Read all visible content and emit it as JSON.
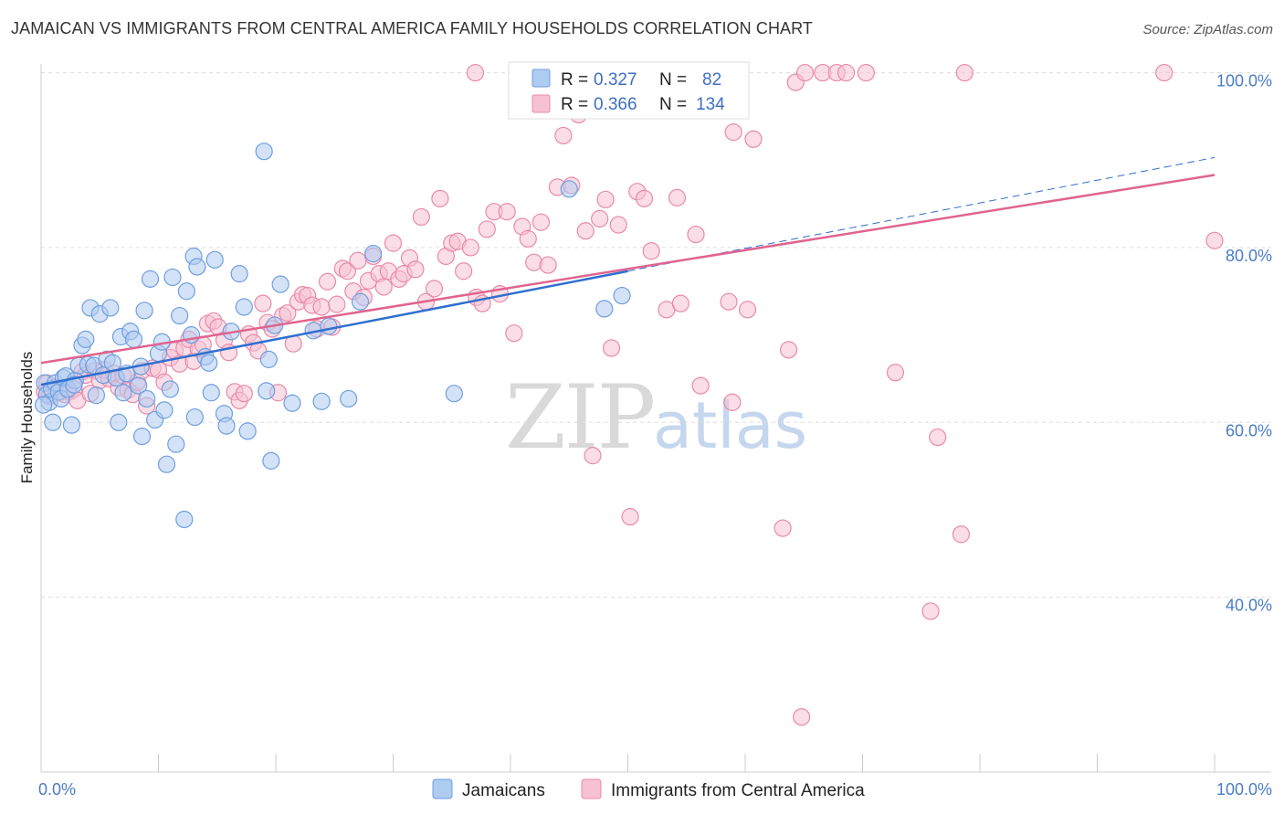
{
  "title": "JAMAICAN VS IMMIGRANTS FROM CENTRAL AMERICA FAMILY HOUSEHOLDS CORRELATION CHART",
  "source": "Source: ZipAtlas.com",
  "watermark": {
    "zip": "ZIP",
    "atlas": "atlas"
  },
  "legend": {
    "r_label": "R =",
    "n_label": "N =",
    "series": [
      {
        "r": "0.327",
        "n": "82"
      },
      {
        "r": "0.366",
        "n": "134"
      }
    ]
  },
  "bottom_legend": [
    "Jamaicans",
    "Immigrants from Central America"
  ],
  "colors": {
    "blue_fill": "#aecbf0",
    "blue_stroke": "#6f9fe0",
    "blue_line": "#2f6fcf",
    "pink_fill": "#f6c1d2",
    "pink_stroke": "#e98aab",
    "pink_line": "#e0648f",
    "grid": "#dddddd",
    "tick_text": "#4a7cc7"
  },
  "chart_data": {
    "type": "scatter",
    "title": "JAMAICAN VS IMMIGRANTS FROM CENTRAL AMERICA FAMILY HOUSEHOLDS CORRELATION CHART",
    "xlabel": "",
    "ylabel": "Family Households",
    "xlim": [
      0,
      100
    ],
    "ylim": [
      20,
      101
    ],
    "x_tick_labels": [
      "0.0%",
      "100.0%"
    ],
    "y_ticks": [
      40,
      60,
      80,
      100
    ],
    "y_tick_labels": [
      "40.0%",
      "60.0%",
      "80.0%",
      "100.0%"
    ],
    "grid": true,
    "legend_position": "top-center",
    "series": [
      {
        "name": "Jamaicans",
        "r": 0.327,
        "n": 82,
        "trend": {
          "x": [
            0,
            50
          ],
          "y": [
            64.3,
            77.3
          ]
        },
        "trend_extension": {
          "x": [
            50,
            100
          ],
          "y": [
            77.3,
            90.3
          ]
        },
        "points": [
          [
            0.3,
            64.5
          ],
          [
            0.5,
            63.2
          ],
          [
            0.7,
            62.3
          ],
          [
            0.9,
            63.8
          ],
          [
            1.0,
            60.0
          ],
          [
            1.2,
            64.5
          ],
          [
            1.5,
            63.5
          ],
          [
            1.7,
            62.7
          ],
          [
            1.9,
            65.1
          ],
          [
            2.1,
            65.3
          ],
          [
            2.3,
            63.8
          ],
          [
            2.6,
            59.7
          ],
          [
            2.9,
            64.8
          ],
          [
            3.2,
            66.5
          ],
          [
            3.5,
            68.8
          ],
          [
            3.8,
            69.5
          ],
          [
            4.0,
            66.6
          ],
          [
            4.2,
            73.1
          ],
          [
            4.5,
            66.5
          ],
          [
            4.7,
            63.1
          ],
          [
            5.0,
            72.4
          ],
          [
            5.3,
            65.4
          ],
          [
            5.6,
            67.2
          ],
          [
            5.9,
            73.1
          ],
          [
            6.1,
            66.8
          ],
          [
            6.4,
            65.1
          ],
          [
            6.6,
            60.0
          ],
          [
            6.8,
            69.8
          ],
          [
            7.0,
            63.4
          ],
          [
            7.3,
            65.6
          ],
          [
            7.6,
            70.4
          ],
          [
            7.9,
            69.5
          ],
          [
            8.3,
            64.2
          ],
          [
            8.5,
            66.4
          ],
          [
            8.6,
            58.4
          ],
          [
            8.8,
            72.8
          ],
          [
            9.0,
            62.7
          ],
          [
            9.3,
            76.4
          ],
          [
            9.7,
            60.3
          ],
          [
            10.0,
            67.9
          ],
          [
            10.3,
            69.2
          ],
          [
            10.5,
            61.4
          ],
          [
            10.7,
            55.2
          ],
          [
            11.0,
            63.8
          ],
          [
            11.2,
            76.6
          ],
          [
            11.5,
            57.5
          ],
          [
            11.8,
            72.2
          ],
          [
            12.2,
            48.9
          ],
          [
            12.4,
            75.0
          ],
          [
            12.8,
            70.0
          ],
          [
            13.0,
            79.0
          ],
          [
            13.1,
            60.6
          ],
          [
            13.3,
            77.8
          ],
          [
            14.0,
            67.5
          ],
          [
            14.3,
            66.8
          ],
          [
            14.5,
            63.4
          ],
          [
            14.8,
            78.6
          ],
          [
            15.6,
            61.0
          ],
          [
            15.8,
            59.6
          ],
          [
            16.2,
            70.4
          ],
          [
            16.9,
            77.0
          ],
          [
            17.3,
            73.2
          ],
          [
            17.6,
            59.0
          ],
          [
            19.0,
            91.0
          ],
          [
            19.2,
            63.6
          ],
          [
            19.4,
            67.2
          ],
          [
            19.6,
            55.6
          ],
          [
            19.9,
            71.1
          ],
          [
            20.4,
            75.8
          ],
          [
            21.4,
            62.2
          ],
          [
            23.2,
            70.5
          ],
          [
            23.9,
            62.4
          ],
          [
            24.5,
            71.0
          ],
          [
            26.2,
            62.7
          ],
          [
            27.2,
            73.8
          ],
          [
            28.3,
            79.3
          ],
          [
            35.2,
            63.3
          ],
          [
            45.0,
            86.7
          ],
          [
            48.0,
            73.0
          ],
          [
            49.5,
            74.5
          ],
          [
            0.2,
            62.0
          ],
          [
            2.8,
            64.3
          ]
        ]
      },
      {
        "name": "Immigrants from Central America",
        "r": 0.366,
        "n": 134,
        "trend": {
          "x": [
            0,
            100
          ],
          "y": [
            66.8,
            88.3
          ]
        },
        "points": [
          [
            0.3,
            63.5
          ],
          [
            0.5,
            64.5
          ],
          [
            0.7,
            63.0
          ],
          [
            1.2,
            64.0
          ],
          [
            1.5,
            63.4
          ],
          [
            2.0,
            63.2
          ],
          [
            2.4,
            63.5
          ],
          [
            2.8,
            63.8
          ],
          [
            3.1,
            62.5
          ],
          [
            3.5,
            65.8
          ],
          [
            3.8,
            65.4
          ],
          [
            4.2,
            63.3
          ],
          [
            4.6,
            65.9
          ],
          [
            5.0,
            64.8
          ],
          [
            5.4,
            66.0
          ],
          [
            5.8,
            65.0
          ],
          [
            6.2,
            65.6
          ],
          [
            6.6,
            64.0
          ],
          [
            7.0,
            65.3
          ],
          [
            7.4,
            63.7
          ],
          [
            7.8,
            63.2
          ],
          [
            8.2,
            64.6
          ],
          [
            8.6,
            65.9
          ],
          [
            9.0,
            61.9
          ],
          [
            9.5,
            66.2
          ],
          [
            10.0,
            66.0
          ],
          [
            10.5,
            64.6
          ],
          [
            11.0,
            67.4
          ],
          [
            11.4,
            68.2
          ],
          [
            11.8,
            66.7
          ],
          [
            12.2,
            68.5
          ],
          [
            12.6,
            69.5
          ],
          [
            13.0,
            67.0
          ],
          [
            13.4,
            68.4
          ],
          [
            13.8,
            68.9
          ],
          [
            14.2,
            71.3
          ],
          [
            14.7,
            71.6
          ],
          [
            15.1,
            70.9
          ],
          [
            15.6,
            69.4
          ],
          [
            16.0,
            68.0
          ],
          [
            16.5,
            63.5
          ],
          [
            16.9,
            62.5
          ],
          [
            17.3,
            63.3
          ],
          [
            17.7,
            70.1
          ],
          [
            18.1,
            69.1
          ],
          [
            18.5,
            68.2
          ],
          [
            18.9,
            73.6
          ],
          [
            19.3,
            71.4
          ],
          [
            19.7,
            70.7
          ],
          [
            20.2,
            63.4
          ],
          [
            20.6,
            72.2
          ],
          [
            21.0,
            72.5
          ],
          [
            21.5,
            69.0
          ],
          [
            21.9,
            73.8
          ],
          [
            22.3,
            74.6
          ],
          [
            22.7,
            74.5
          ],
          [
            23.1,
            73.4
          ],
          [
            23.5,
            70.7
          ],
          [
            23.9,
            73.2
          ],
          [
            24.4,
            76.1
          ],
          [
            24.8,
            70.9
          ],
          [
            25.2,
            73.5
          ],
          [
            25.7,
            77.6
          ],
          [
            26.1,
            77.3
          ],
          [
            26.6,
            75.0
          ],
          [
            27.0,
            78.5
          ],
          [
            27.5,
            74.3
          ],
          [
            27.9,
            76.2
          ],
          [
            28.3,
            79.0
          ],
          [
            28.8,
            77.0
          ],
          [
            29.2,
            75.5
          ],
          [
            29.6,
            77.3
          ],
          [
            30.0,
            80.5
          ],
          [
            30.5,
            76.4
          ],
          [
            30.9,
            77.0
          ],
          [
            31.4,
            78.8
          ],
          [
            31.9,
            77.5
          ],
          [
            32.4,
            83.5
          ],
          [
            32.8,
            73.8
          ],
          [
            33.5,
            75.3
          ],
          [
            34.0,
            85.6
          ],
          [
            34.5,
            79.0
          ],
          [
            35.0,
            80.5
          ],
          [
            35.5,
            80.7
          ],
          [
            36.0,
            77.3
          ],
          [
            36.6,
            80.0
          ],
          [
            37.1,
            74.3
          ],
          [
            37.6,
            73.6
          ],
          [
            38.0,
            82.1
          ],
          [
            38.6,
            84.1
          ],
          [
            39.1,
            74.7
          ],
          [
            39.7,
            84.1
          ],
          [
            40.3,
            70.2
          ],
          [
            41.0,
            82.4
          ],
          [
            41.5,
            81.0
          ],
          [
            42.0,
            78.3
          ],
          [
            42.6,
            82.9
          ],
          [
            43.2,
            78.0
          ],
          [
            44.0,
            86.9
          ],
          [
            44.5,
            92.8
          ],
          [
            45.2,
            87.1
          ],
          [
            45.8,
            95.2
          ],
          [
            46.4,
            81.9
          ],
          [
            47.0,
            56.2
          ],
          [
            47.6,
            83.3
          ],
          [
            48.1,
            85.5
          ],
          [
            48.6,
            68.5
          ],
          [
            49.2,
            82.6
          ],
          [
            50.2,
            49.2
          ],
          [
            50.8,
            86.4
          ],
          [
            51.4,
            85.6
          ],
          [
            52.0,
            79.6
          ],
          [
            53.3,
            72.9
          ],
          [
            54.2,
            85.7
          ],
          [
            54.5,
            73.6
          ],
          [
            55.8,
            81.5
          ],
          [
            56.2,
            64.2
          ],
          [
            57.0,
            100.0
          ],
          [
            58.6,
            73.8
          ],
          [
            58.9,
            62.3
          ],
          [
            59.0,
            93.2
          ],
          [
            60.2,
            72.9
          ],
          [
            60.7,
            92.4
          ],
          [
            63.2,
            47.9
          ],
          [
            63.7,
            68.3
          ],
          [
            64.3,
            98.9
          ],
          [
            64.8,
            26.3
          ],
          [
            65.1,
            100.0
          ],
          [
            66.6,
            100.0
          ],
          [
            67.8,
            100.0
          ],
          [
            68.6,
            100.0
          ],
          [
            70.3,
            100.0
          ],
          [
            72.8,
            65.7
          ],
          [
            75.8,
            38.4
          ],
          [
            76.4,
            58.3
          ],
          [
            78.4,
            47.2
          ],
          [
            78.7,
            100.0
          ],
          [
            95.7,
            100.0
          ],
          [
            100.0,
            80.8
          ],
          [
            37.0,
            100.0
          ]
        ]
      }
    ]
  }
}
